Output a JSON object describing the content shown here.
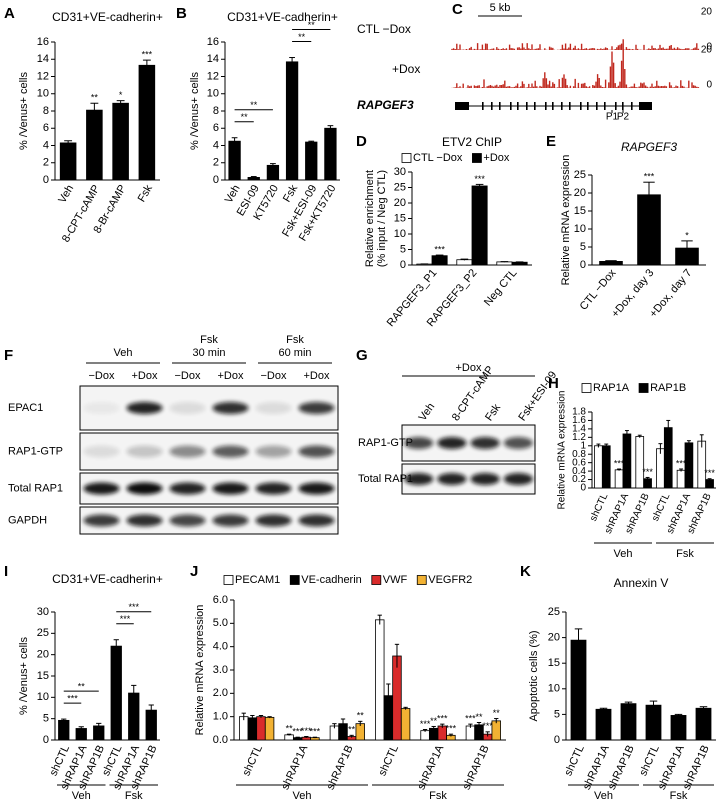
{
  "chart_data": [
    {
      "panel": "A",
      "type": "bar",
      "title": "CD31+VE-cadherin+",
      "ylabel": "% /Venus+ cells",
      "categories": [
        "Veh",
        "8-CPT-cAMP",
        "8-Br-cAMP",
        "Fsk"
      ],
      "values": [
        4.3,
        8.1,
        8.9,
        13.3
      ],
      "errors": [
        0.25,
        0.8,
        0.3,
        0.6
      ],
      "sig": [
        null,
        "**",
        "*",
        "***"
      ],
      "color": "#000000",
      "ylim": [
        0,
        16
      ],
      "yticks": [
        0,
        2,
        4,
        6,
        8,
        10,
        12,
        14,
        16
      ]
    },
    {
      "panel": "B",
      "type": "bar",
      "title": "CD31+VE-cadherin+",
      "ylabel": "% /Venus+ cells",
      "categories": [
        "Veh",
        "ESI-09",
        "KT5720",
        "Fsk",
        "Fsk+ESI-09",
        "Fsk+KT5720"
      ],
      "values": [
        4.5,
        0.3,
        1.7,
        13.7,
        4.4,
        6.0
      ],
      "errors": [
        0.4,
        0.1,
        0.2,
        0.5,
        0.1,
        0.3
      ],
      "color": "#000000",
      "ylim": [
        0,
        16
      ],
      "yticks": [
        0,
        2,
        4,
        6,
        8,
        10,
        12,
        14,
        16
      ],
      "brackets": [
        {
          "from": 0,
          "to": 1,
          "label": "**"
        },
        {
          "from": 0,
          "to": 2,
          "label": "**"
        },
        {
          "from": 3,
          "to": 4,
          "label": "**"
        },
        {
          "from": 3,
          "to": 5,
          "label": "**"
        }
      ]
    },
    {
      "panel": "D",
      "type": "bar",
      "title": "ETV2 ChIP",
      "ylabel": [
        "Relative enrichment",
        "(% input / Neg CTL)"
      ],
      "categories": [
        "RAPGEF3_P1",
        "RAPGEF3_P2",
        "Neg CTL"
      ],
      "series": [
        {
          "name": "CTL −Dox",
          "color": "#ffffff",
          "values": [
            0.3,
            1.7,
            1.0
          ],
          "errors": [
            0.05,
            0.2,
            0.1
          ]
        },
        {
          "name": "+Dox",
          "color": "#000000",
          "values": [
            3.0,
            25.5,
            0.9
          ],
          "errors": [
            0.2,
            0.5,
            0.1
          ],
          "sig": [
            "***",
            "***",
            null
          ]
        }
      ],
      "ylim": [
        0,
        30
      ],
      "yticks": [
        0,
        5,
        10,
        15,
        20,
        25,
        30
      ]
    },
    {
      "panel": "E",
      "type": "bar",
      "title": "RAPGEF3",
      "ylabel": "Relative mRNA expression",
      "categories": [
        "CTL −Dox",
        "+Dox, day 3",
        "+Dox, day 7"
      ],
      "values": [
        1.0,
        19.5,
        4.7
      ],
      "errors": [
        0.2,
        3.5,
        2.0
      ],
      "sig": [
        null,
        "***",
        "*"
      ],
      "color": "#000000",
      "ylim": [
        0,
        25
      ],
      "yticks": [
        0,
        5,
        10,
        15,
        20,
        25
      ]
    },
    {
      "panel": "H",
      "type": "bar",
      "ylabel": "Relative mRNA expression",
      "categories": [
        "shCTL",
        "shRAP1A",
        "shRAP1B",
        "shCTL",
        "shRAP1A",
        "shRAP1B"
      ],
      "series": [
        {
          "name": "RAP1A",
          "color": "#ffffff",
          "values": [
            1.0,
            0.43,
            1.22,
            0.93,
            0.42,
            1.11
          ],
          "errors": [
            0.04,
            0.02,
            0.03,
            0.12,
            0.03,
            0.15
          ],
          "sig": [
            null,
            "***",
            null,
            null,
            "***",
            null
          ]
        },
        {
          "name": "RAP1B",
          "color": "#000000",
          "values": [
            1.0,
            1.28,
            0.22,
            1.43,
            1.07,
            0.2
          ],
          "errors": [
            0.04,
            0.08,
            0.03,
            0.17,
            0.05,
            0.02
          ],
          "sig": [
            null,
            null,
            "***",
            null,
            null,
            "***"
          ]
        }
      ],
      "ylim": [
        0,
        1.8
      ],
      "yticks": [
        0,
        0.2,
        0.4,
        0.6,
        0.8,
        1,
        1.2,
        1.4,
        1.6,
        1.8
      ],
      "groups": [
        {
          "label": "Veh",
          "from": 0,
          "to": 2
        },
        {
          "label": "Fsk",
          "from": 3,
          "to": 5
        }
      ]
    },
    {
      "panel": "I",
      "type": "bar",
      "title": "CD31+VE-cadherin+",
      "ylabel": "% /Venus+ cells",
      "categories": [
        "shCTL",
        "shRAP1A",
        "shRAP1B",
        "shCTL",
        "shRAP1A",
        "shRAP1B"
      ],
      "values": [
        4.6,
        2.7,
        3.3,
        22,
        11,
        7
      ],
      "errors": [
        0.3,
        0.4,
        0.6,
        1.5,
        1.8,
        1.2
      ],
      "color": "#000000",
      "ylim": [
        0,
        30
      ],
      "yticks": [
        0,
        5,
        10,
        15,
        20,
        25,
        30
      ],
      "brackets": [
        {
          "from": 0,
          "to": 1,
          "label": "***"
        },
        {
          "from": 0,
          "to": 2,
          "label": "**"
        },
        {
          "from": 3,
          "to": 4,
          "label": "***"
        },
        {
          "from": 3,
          "to": 5,
          "label": "***"
        }
      ],
      "groups": [
        {
          "label": "Veh",
          "from": 0,
          "to": 2
        },
        {
          "label": "Fsk",
          "from": 3,
          "to": 5
        }
      ]
    },
    {
      "panel": "J",
      "type": "bar",
      "ylabel": "Relative mRNA expression",
      "categories": [
        "shCTL",
        "shRAP1A",
        "shRAP1B",
        "shCTL",
        "shRAP1A",
        "shRAP1B"
      ],
      "series": [
        {
          "name": "PECAM1",
          "color": "#ffffff",
          "values": [
            1.0,
            0.22,
            0.6,
            5.15,
            0.4,
            0.6
          ],
          "errors": [
            0.15,
            0.03,
            0.1,
            0.2,
            0.05,
            0.08
          ],
          "sig": [
            null,
            "**",
            null,
            null,
            "***",
            "***"
          ]
        },
        {
          "name": "VE-cadherin",
          "color": "#000000",
          "values": [
            0.95,
            0.1,
            0.7,
            1.9,
            0.5,
            0.65
          ],
          "errors": [
            0.1,
            0.02,
            0.2,
            0.5,
            0.08,
            0.1
          ],
          "sig": [
            null,
            "***",
            null,
            null,
            "**",
            "**"
          ]
        },
        {
          "name": "VWF",
          "color": "#d92b2b",
          "values": [
            1.0,
            0.12,
            0.15,
            3.6,
            0.6,
            0.25
          ],
          "errors": [
            0.05,
            0.03,
            0.05,
            0.5,
            0.08,
            0.1
          ],
          "sig": [
            null,
            "***",
            "**",
            null,
            "***",
            "***"
          ]
        },
        {
          "name": "VEGFR2",
          "color": "#f2b233",
          "values": [
            0.97,
            0.1,
            0.7,
            1.35,
            0.2,
            0.82
          ],
          "errors": [
            0.03,
            0.02,
            0.1,
            0.05,
            0.05,
            0.1
          ],
          "sig": [
            null,
            "***",
            "**",
            null,
            "***",
            "**"
          ]
        }
      ],
      "ylim": [
        0,
        6
      ],
      "yticks": [
        {
          "value": 0,
          "label": "0.0"
        },
        {
          "value": 1,
          "label": "1.0"
        },
        {
          "value": 2,
          "label": "2.0"
        },
        {
          "value": 3,
          "label": "3.0"
        },
        {
          "value": 4,
          "label": "4.0"
        },
        {
          "value": 5,
          "label": "5.0"
        },
        {
          "value": 6,
          "label": "6.0"
        }
      ],
      "groups": [
        {
          "label": "Veh",
          "from": 0,
          "to": 2
        },
        {
          "label": "Fsk",
          "from": 3,
          "to": 5
        }
      ]
    },
    {
      "panel": "K",
      "type": "bar",
      "title": "Annexin V",
      "ylabel": "Apoptotic cells (%)",
      "categories": [
        "shCTL",
        "shRAP1A",
        "shRAP1B",
        "shCTL",
        "shRAP1A",
        "shRAP1B"
      ],
      "values": [
        19.5,
        6.0,
        7.1,
        6.8,
        4.8,
        6.2
      ],
      "errors": [
        2.2,
        0.2,
        0.3,
        0.8,
        0.2,
        0.3
      ],
      "color": "#000000",
      "ylim": [
        0,
        25
      ],
      "yticks": [
        0,
        5,
        10,
        15,
        20,
        25
      ],
      "groups": [
        {
          "label": "Veh",
          "from": 0,
          "to": 2
        },
        {
          "label": "Fsk",
          "from": 3,
          "to": 5
        }
      ]
    }
  ],
  "genome_track": {
    "panel": "C",
    "scale": "5 kb",
    "tracks": [
      {
        "label": "CTL −Dox",
        "max": 20,
        "min": 0
      },
      {
        "label": "+Dox",
        "max": 20,
        "min": 0
      }
    ],
    "gene": "RAPGEF3",
    "peaks": [
      "P1",
      "P2"
    ]
  },
  "blots": [
    {
      "panel": "F",
      "groups": [
        {
          "label": "Veh"
        },
        {
          "label": "Fsk",
          "sublabel": "30 min"
        },
        {
          "label": "Fsk",
          "sublabel": "60 min"
        }
      ],
      "lanes": [
        "−Dox",
        "+Dox",
        "−Dox",
        "+Dox",
        "−Dox",
        "+Dox"
      ],
      "rows": [
        "EPAC1",
        "RAP1-GTP",
        "Total RAP1",
        "GAPDH"
      ]
    },
    {
      "panel": "G",
      "header": "+Dox",
      "lanes": [
        "Veh",
        "8-CPT-cAMP",
        "Fsk",
        "Fsk+ESI-09"
      ],
      "rows": [
        "RAP1-GTP",
        "Total RAP1"
      ]
    }
  ]
}
